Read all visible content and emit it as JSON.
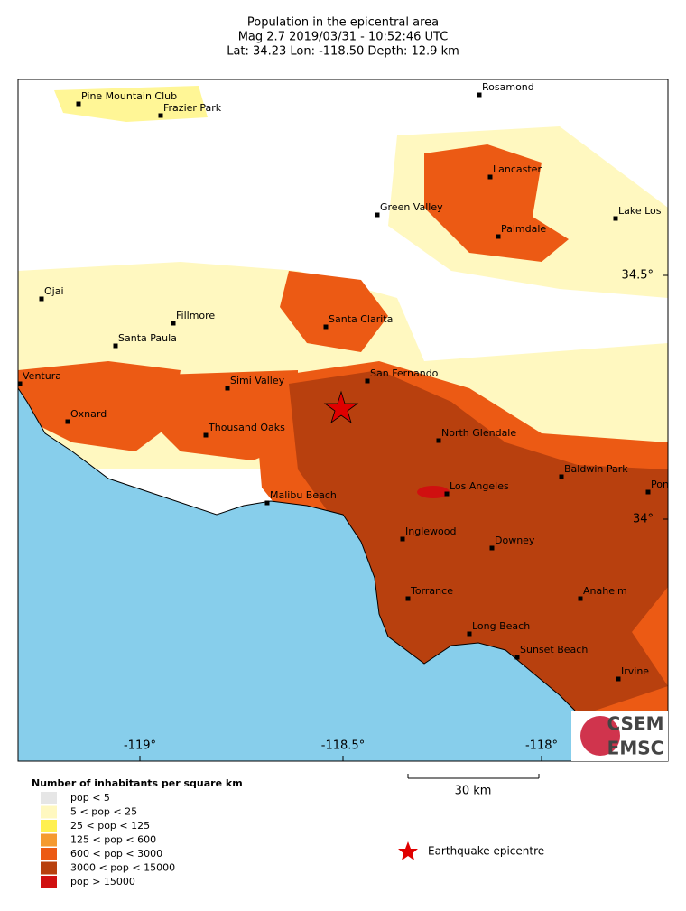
{
  "header": {
    "title": "Population in the epicentral area",
    "event": "Mag 2.7  2019/03/31 - 10:52:46 UTC",
    "location": "Lat: 34.23    Lon: -118.50    Depth:  12.9 km"
  },
  "map": {
    "places": [
      {
        "label": "Pine Mountain Club"
      },
      {
        "label": "Frazier Park"
      },
      {
        "label": "Rosamond"
      },
      {
        "label": "Lancaster"
      },
      {
        "label": "Green Valley"
      },
      {
        "label": "Lake Los"
      },
      {
        "label": "Palmdale"
      },
      {
        "label": "Ojai"
      },
      {
        "label": "Fillmore"
      },
      {
        "label": "Santa Clarita"
      },
      {
        "label": "Santa Paula"
      },
      {
        "label": "San Fernando"
      },
      {
        "label": "Ventura"
      },
      {
        "label": "Simi Valley"
      },
      {
        "label": "Oxnard"
      },
      {
        "label": "Thousand Oaks"
      },
      {
        "label": "North Glendale"
      },
      {
        "label": "Baldwin Park"
      },
      {
        "label": "Pon"
      },
      {
        "label": "Los Angeles"
      },
      {
        "label": "Malibu Beach"
      },
      {
        "label": "Inglewood"
      },
      {
        "label": "Downey"
      },
      {
        "label": "Torrance"
      },
      {
        "label": "Anaheim"
      },
      {
        "label": "Long Beach"
      },
      {
        "label": "Sunset Beach"
      },
      {
        "label": "Irvine"
      }
    ],
    "latitude_labels": [
      "34.5°",
      "34°"
    ],
    "longitude_labels": [
      "-119°",
      "-118.5°",
      "-118°"
    ]
  },
  "legend": {
    "title": "Number of inhabitants per square km",
    "entries": [
      {
        "label": "pop < 5",
        "color": "#e6e6e6"
      },
      {
        "label": "5 < pop < 25",
        "color": "#fff8c0"
      },
      {
        "label": "25 < pop < 125",
        "color": "#fff050"
      },
      {
        "label": "125 < pop < 600",
        "color": "#f59a30"
      },
      {
        "label": "600 < pop < 3000",
        "color": "#ec5a14"
      },
      {
        "label": "3000 < pop < 15000",
        "color": "#b8400e"
      },
      {
        "label": "pop > 15000",
        "color": "#d01010"
      }
    ]
  },
  "scale": {
    "label": "30 km"
  },
  "epicentre": {
    "label": "Earthquake epicentre"
  },
  "logo": {
    "top": "CSEM",
    "bottom": "EMSC"
  }
}
